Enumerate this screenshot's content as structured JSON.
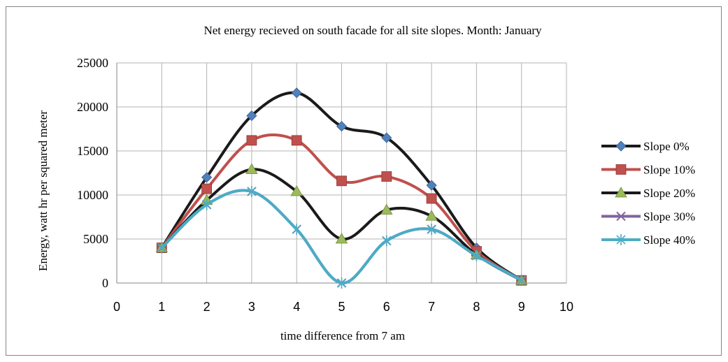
{
  "chart_data": {
    "type": "line",
    "title": "Net energy recieved on south facade for all site slopes. Month: January",
    "xlabel": "time difference from 7 am",
    "ylabel": "Energy, watt hr per squared meter",
    "xlim": [
      0,
      10
    ],
    "ylim": [
      0,
      25000
    ],
    "x_ticks": [
      "0",
      "1",
      "2",
      "3",
      "4",
      "5",
      "6",
      "7",
      "8",
      "9",
      "10"
    ],
    "y_ticks": [
      "0",
      "5000",
      "10000",
      "15000",
      "20000",
      "25000"
    ],
    "grid": true,
    "legend_position": "right",
    "x": [
      1,
      2,
      3,
      4,
      5,
      6,
      7,
      8,
      9
    ],
    "series": [
      {
        "name": "Slope 0%",
        "color": "#4f81bd",
        "line_color": "#1a1a1a",
        "marker": "diamond",
        "values": [
          4000,
          12000,
          19000,
          21600,
          17800,
          16500,
          11100,
          4000,
          300
        ]
      },
      {
        "name": "Slope 10%",
        "color": "#c0504d",
        "line_color": "#c0504d",
        "marker": "square",
        "values": [
          4000,
          10700,
          16200,
          16200,
          11600,
          12100,
          9600,
          3600,
          300
        ]
      },
      {
        "name": "Slope 20%",
        "color": "#9bbb59",
        "line_color": "#1a1a1a",
        "marker": "triangle",
        "values": [
          4000,
          9400,
          12900,
          10400,
          5000,
          8300,
          7600,
          3200,
          300
        ]
      },
      {
        "name": "Slope 30%",
        "color": "#8064a2",
        "line_color": "#8064a2",
        "marker": "x",
        "values": [
          4000,
          8900,
          10400,
          6100,
          0,
          4800,
          6100,
          3100,
          300
        ]
      },
      {
        "name": "Slope 40%",
        "color": "#4bacc6",
        "line_color": "#4bacc6",
        "marker": "star",
        "values": [
          4000,
          8900,
          10400,
          6100,
          0,
          4800,
          6100,
          3100,
          300
        ]
      }
    ]
  }
}
